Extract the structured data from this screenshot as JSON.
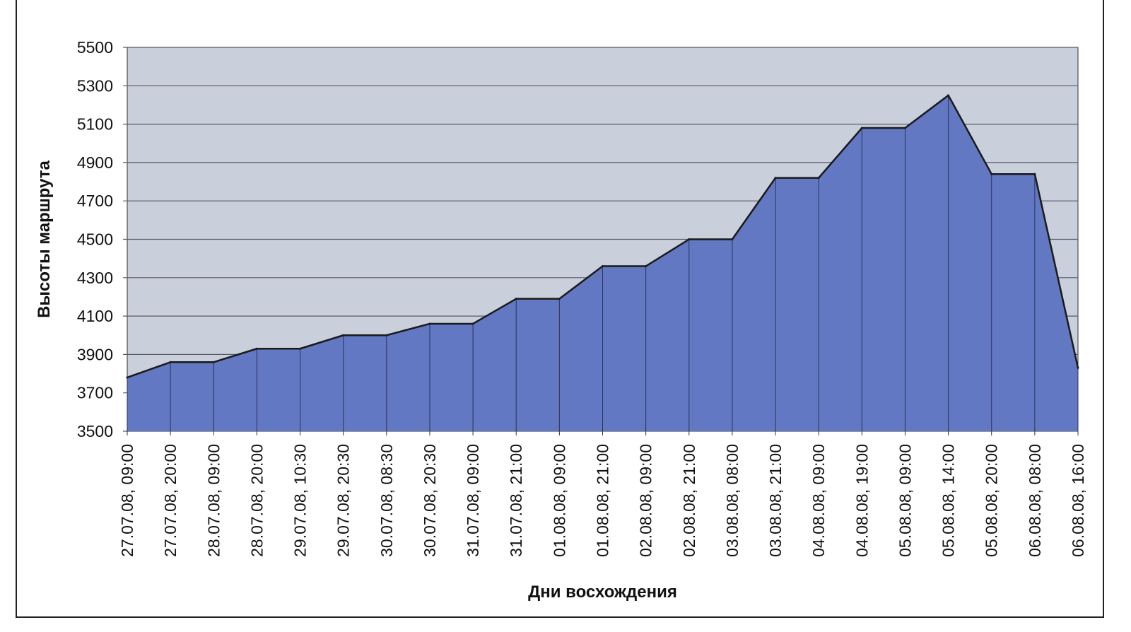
{
  "chart_data": {
    "type": "area",
    "title": "",
    "xlabel": "Дни восхождения",
    "ylabel": "Высоты маршрута",
    "ylim": [
      3500,
      5500
    ],
    "yticks": [
      3500,
      3700,
      3900,
      4100,
      4300,
      4500,
      4700,
      4900,
      5100,
      5300,
      5500
    ],
    "grid": true,
    "legend": "none",
    "colors": {
      "plot_background": "#c9cfdb",
      "area_fill": "#6278c2",
      "area_stroke": "#1a1a1a",
      "gridline": "#555a66"
    },
    "categories": [
      "27.07.08, 09:00",
      "27.07.08, 20:00",
      "28.07.08, 09:00",
      "28.07.08, 20:00",
      "29.07.08, 10:30",
      "29.07.08, 20:30",
      "30.07.08, 08:30",
      "30.07.08, 20:30",
      "31.07.08, 09:00",
      "31.07.08, 21:00",
      "01.08.08, 09:00",
      "01.08.08, 21:00",
      "02.08.08, 09:00",
      "02.08.08, 21:00",
      "03.08.08, 08:00",
      "03.08.08, 21:00",
      "04.08.08, 09:00",
      "04.08.08, 19:00",
      "05.08.08, 09:00",
      "05.08.08, 14:00",
      "05.08.08, 20:00",
      "06.08.08, 08:00",
      "06.08.08, 16:00"
    ],
    "series": [
      {
        "values": [
          3780,
          3860,
          3860,
          3930,
          3930,
          4000,
          4000,
          4060,
          4060,
          4190,
          4190,
          4360,
          4360,
          4500,
          4500,
          4820,
          4820,
          5080,
          5080,
          5250,
          4840,
          4840,
          3830
        ]
      }
    ]
  }
}
